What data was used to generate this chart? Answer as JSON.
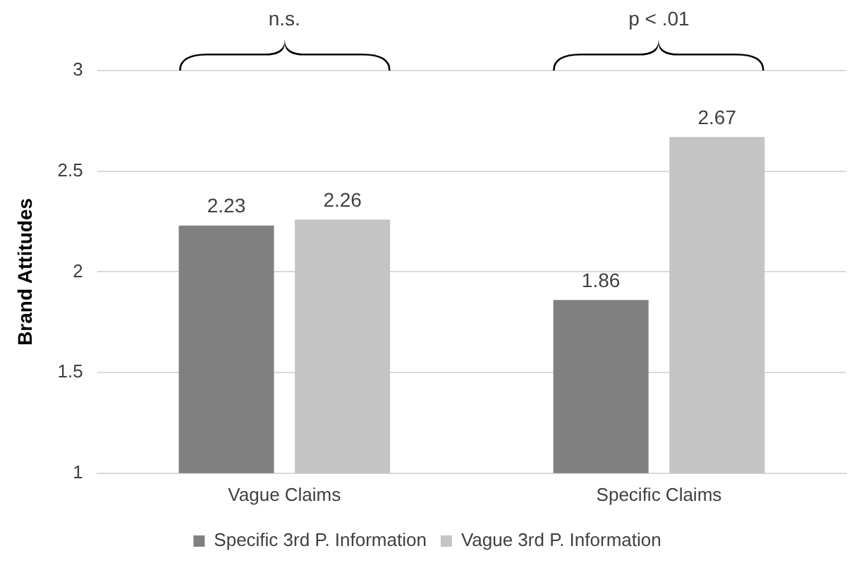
{
  "chart_data": {
    "type": "bar",
    "ylabel": "Brand Attitudes",
    "categories": [
      "Vague Claims",
      "Specific Claims"
    ],
    "series": [
      {
        "name": "Specific 3rd P. Information",
        "color": "#808080",
        "values": [
          2.23,
          1.86
        ]
      },
      {
        "name": "Vague 3rd P. Information",
        "color": "#c4c4c4",
        "values": [
          2.26,
          2.67
        ]
      }
    ],
    "ylim": [
      1,
      3
    ],
    "yticks": [
      1,
      1.5,
      2,
      2.5,
      3
    ],
    "grid": "y",
    "legend": "bottom",
    "data_labels": true,
    "annotations": [
      "n.s.",
      "p < .01"
    ]
  }
}
